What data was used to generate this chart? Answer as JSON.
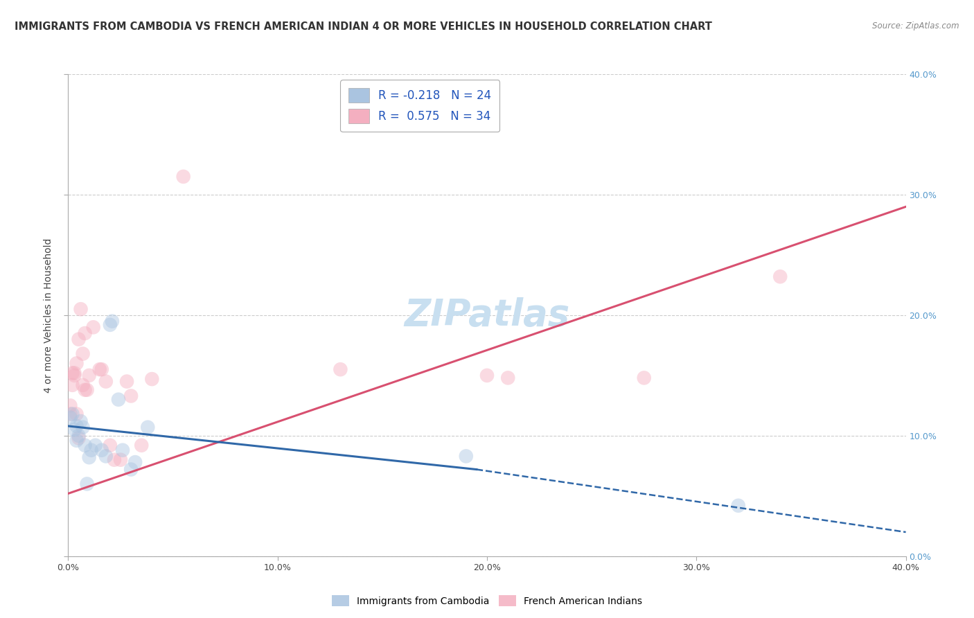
{
  "title": "IMMIGRANTS FROM CAMBODIA VS FRENCH AMERICAN INDIAN 4 OR MORE VEHICLES IN HOUSEHOLD CORRELATION CHART",
  "source": "Source: ZipAtlas.com",
  "ylabel": "4 or more Vehicles in Household",
  "xlim": [
    0.0,
    0.4
  ],
  "ylim": [
    0.0,
    0.4
  ],
  "xticks": [
    0.0,
    0.1,
    0.2,
    0.3,
    0.4
  ],
  "yticks": [
    0.0,
    0.1,
    0.2,
    0.3,
    0.4
  ],
  "xticklabels": [
    "0.0%",
    "10.0%",
    "20.0%",
    "30.0%",
    "40.0%"
  ],
  "yticklabels_right": [
    "0.0%",
    "10.0%",
    "20.0%",
    "30.0%",
    "40.0%"
  ],
  "legend_r1": "R = -0.218",
  "legend_n1": "N = 24",
  "legend_r2": "R =  0.575",
  "legend_n2": "N = 34",
  "watermark": "ZIPatlas",
  "blue_color": "#aac4e0",
  "pink_color": "#f4afc0",
  "blue_line_color": "#3068a8",
  "pink_line_color": "#d85070",
  "blue_scatter": [
    [
      0.001,
      0.115
    ],
    [
      0.002,
      0.118
    ],
    [
      0.003,
      0.105
    ],
    [
      0.004,
      0.096
    ],
    [
      0.004,
      0.108
    ],
    [
      0.005,
      0.1
    ],
    [
      0.006,
      0.112
    ],
    [
      0.007,
      0.107
    ],
    [
      0.008,
      0.092
    ],
    [
      0.009,
      0.06
    ],
    [
      0.01,
      0.082
    ],
    [
      0.011,
      0.088
    ],
    [
      0.013,
      0.092
    ],
    [
      0.016,
      0.088
    ],
    [
      0.018,
      0.083
    ],
    [
      0.02,
      0.192
    ],
    [
      0.021,
      0.195
    ],
    [
      0.024,
      0.13
    ],
    [
      0.026,
      0.088
    ],
    [
      0.03,
      0.072
    ],
    [
      0.032,
      0.078
    ],
    [
      0.038,
      0.107
    ],
    [
      0.19,
      0.083
    ],
    [
      0.32,
      0.042
    ]
  ],
  "pink_scatter": [
    [
      0.001,
      0.125
    ],
    [
      0.001,
      0.118
    ],
    [
      0.002,
      0.152
    ],
    [
      0.002,
      0.142
    ],
    [
      0.003,
      0.15
    ],
    [
      0.003,
      0.152
    ],
    [
      0.004,
      0.16
    ],
    [
      0.004,
      0.118
    ],
    [
      0.005,
      0.098
    ],
    [
      0.005,
      0.18
    ],
    [
      0.006,
      0.205
    ],
    [
      0.007,
      0.168
    ],
    [
      0.007,
      0.142
    ],
    [
      0.008,
      0.138
    ],
    [
      0.008,
      0.185
    ],
    [
      0.009,
      0.138
    ],
    [
      0.01,
      0.15
    ],
    [
      0.012,
      0.19
    ],
    [
      0.015,
      0.155
    ],
    [
      0.016,
      0.155
    ],
    [
      0.018,
      0.145
    ],
    [
      0.02,
      0.092
    ],
    [
      0.022,
      0.08
    ],
    [
      0.025,
      0.08
    ],
    [
      0.028,
      0.145
    ],
    [
      0.03,
      0.133
    ],
    [
      0.035,
      0.092
    ],
    [
      0.04,
      0.147
    ],
    [
      0.055,
      0.315
    ],
    [
      0.13,
      0.155
    ],
    [
      0.2,
      0.15
    ],
    [
      0.21,
      0.148
    ],
    [
      0.275,
      0.148
    ],
    [
      0.34,
      0.232
    ]
  ],
  "blue_line_solid": {
    "x0": 0.0,
    "x1": 0.195,
    "y0": 0.108,
    "y1": 0.072
  },
  "blue_line_dash": {
    "x0": 0.195,
    "x1": 0.4,
    "y0": 0.072,
    "y1": 0.02
  },
  "pink_line": {
    "x0": 0.0,
    "x1": 0.4,
    "y0": 0.052,
    "y1": 0.29
  },
  "grid_color": "#cccccc",
  "bg_color": "#ffffff",
  "title_fontsize": 10.5,
  "label_fontsize": 10,
  "tick_fontsize": 9,
  "legend_fontsize": 12,
  "watermark_fontsize": 38,
  "watermark_color": "#c8dff0",
  "scatter_size": 220,
  "scatter_alpha": 0.45
}
